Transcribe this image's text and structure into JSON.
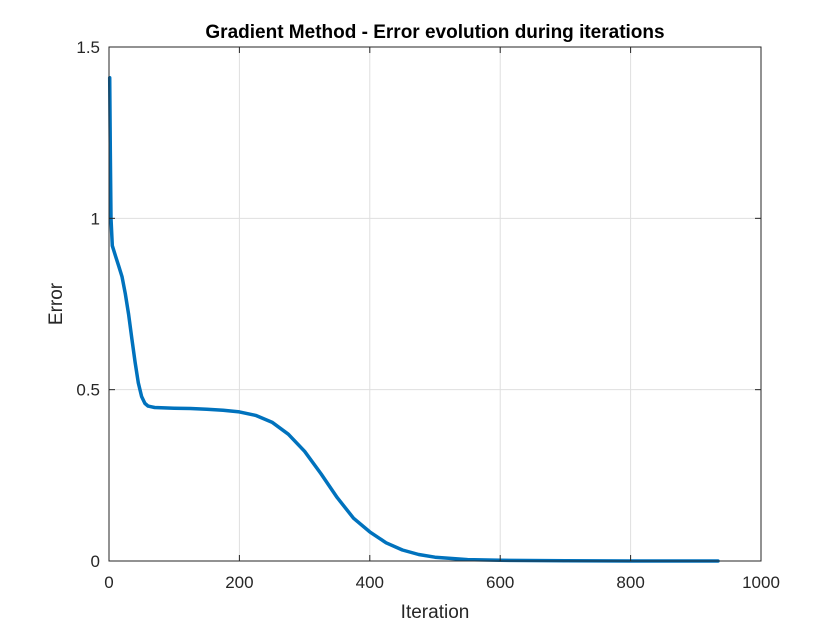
{
  "chart_data": {
    "type": "line",
    "title": "Gradient Method - Error evolution during iterations",
    "xlabel": "Iteration",
    "ylabel": "Error",
    "xlim": [
      0,
      1000
    ],
    "ylim": [
      0,
      1.5
    ],
    "xticks": [
      0,
      200,
      400,
      600,
      800,
      1000
    ],
    "yticks": [
      0,
      0.5,
      1,
      1.5
    ],
    "xtick_labels": [
      "0",
      "200",
      "400",
      "600",
      "800",
      "1000"
    ],
    "ytick_labels": [
      "0",
      "0.5",
      "1",
      "1.5"
    ],
    "grid": true,
    "line_color": "#0072BD",
    "series": [
      {
        "x": [
          1,
          2,
          3,
          5,
          10,
          15,
          20,
          25,
          30,
          35,
          40,
          45,
          50,
          55,
          60,
          65,
          70,
          80,
          100,
          125,
          150,
          175,
          200,
          225,
          250,
          275,
          300,
          325,
          350,
          375,
          400,
          425,
          450,
          475,
          500,
          550,
          600,
          700,
          800,
          934
        ],
        "y": [
          1.41,
          1.2,
          1.0,
          0.92,
          0.89,
          0.86,
          0.83,
          0.78,
          0.72,
          0.65,
          0.58,
          0.52,
          0.48,
          0.46,
          0.452,
          0.45,
          0.448,
          0.447,
          0.446,
          0.445,
          0.443,
          0.44,
          0.435,
          0.425,
          0.405,
          0.37,
          0.32,
          0.255,
          0.185,
          0.125,
          0.085,
          0.053,
          0.032,
          0.019,
          0.011,
          0.004,
          0.002,
          0.001,
          0.0,
          0.0
        ]
      }
    ]
  }
}
